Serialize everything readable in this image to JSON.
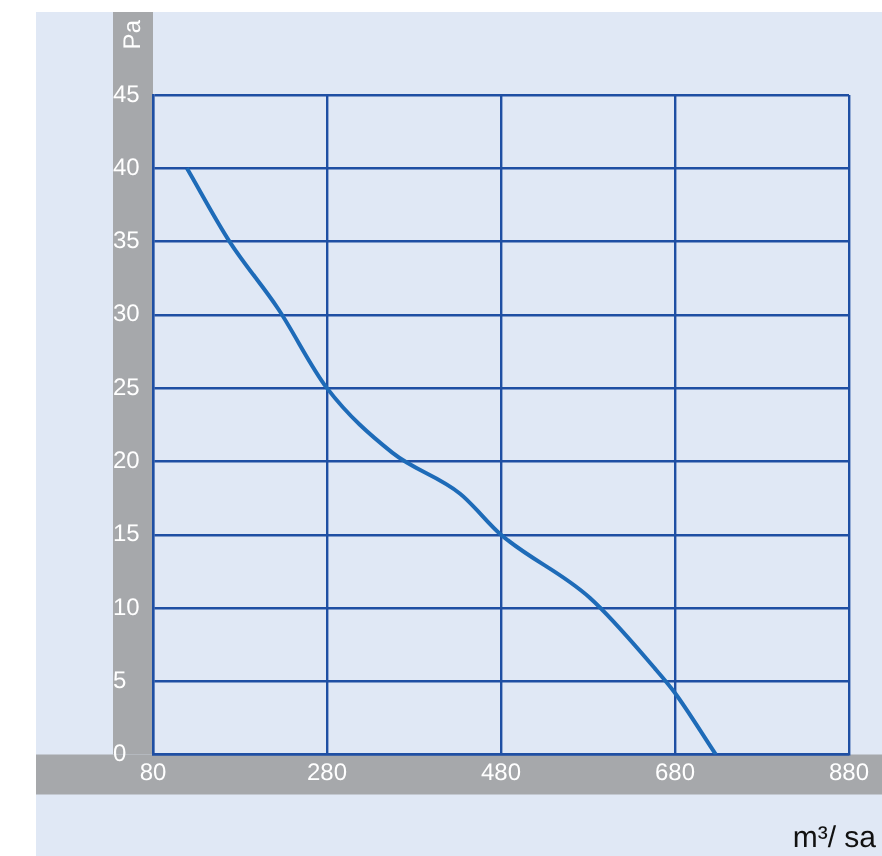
{
  "chart_data": {
    "type": "line",
    "xlabel": "m³/ sa",
    "ylabel": "Pa",
    "x": [
      119,
      168,
      224,
      280,
      355,
      433,
      480,
      582,
      658,
      680,
      727
    ],
    "series": [
      {
        "color": "#1e6bb8",
        "values": [
          40,
          35,
          30.4,
          25,
          20.6,
          17.8,
          15,
          10.7,
          5.8,
          4.2,
          0
        ]
      }
    ],
    "xlim": [
      80,
      880
    ],
    "xticks": [
      80,
      280,
      480,
      680,
      880
    ],
    "ylim": [
      0,
      45
    ],
    "yticks": [
      0,
      5,
      10,
      15,
      20,
      25,
      30,
      35,
      40,
      45
    ],
    "grid": true,
    "legend": false,
    "marker": "none",
    "line_style": "solid"
  }
}
